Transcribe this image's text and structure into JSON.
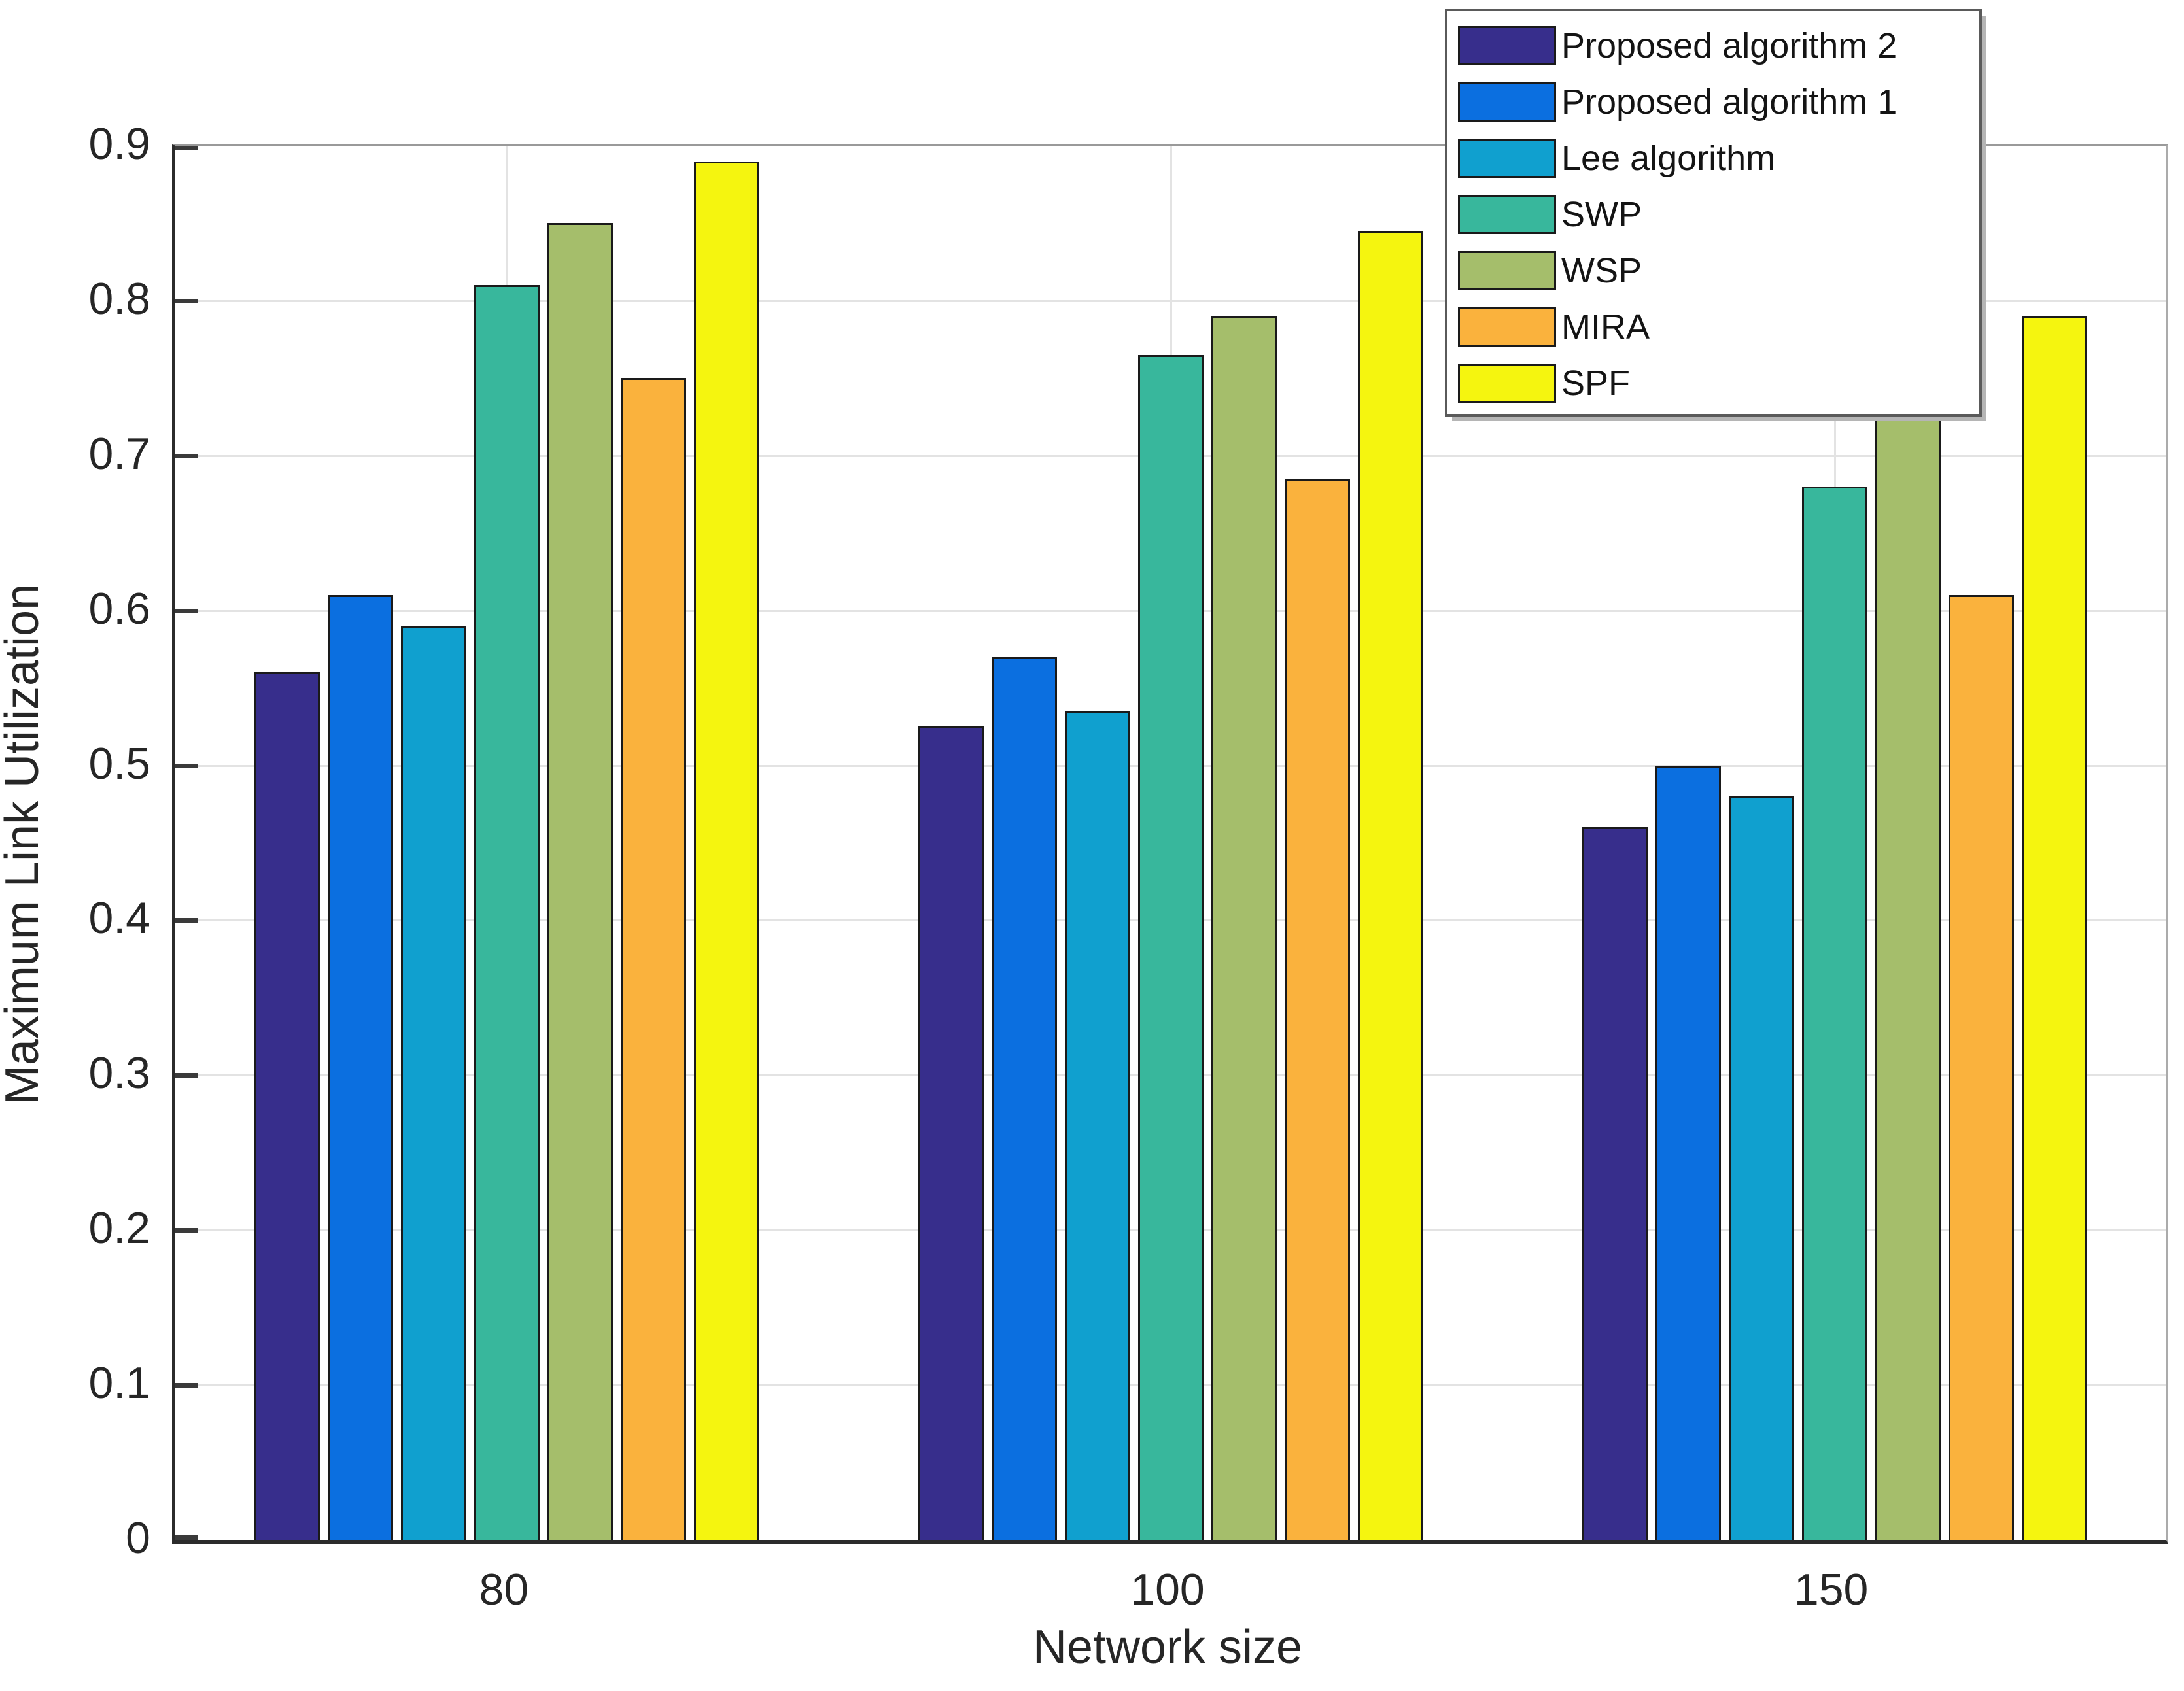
{
  "chart_data": {
    "type": "bar",
    "title": "",
    "xlabel": "Network size",
    "ylabel": "Maximum Link Utilization",
    "categories": [
      "80",
      "100",
      "150"
    ],
    "series": [
      {
        "name": "Proposed algorithm 2",
        "color": "#372E8C",
        "values": [
          0.56,
          0.525,
          0.46
        ]
      },
      {
        "name": "Proposed algorithm 1",
        "color": "#0B6FE0",
        "values": [
          0.61,
          0.57,
          0.5
        ]
      },
      {
        "name": "Lee algorithm",
        "color": "#10A0CF",
        "values": [
          0.59,
          0.535,
          0.48
        ]
      },
      {
        "name": "SWP",
        "color": "#38B79C",
        "values": [
          0.81,
          0.765,
          0.68
        ]
      },
      {
        "name": "WSP",
        "color": "#A5BE6B",
        "values": [
          0.85,
          0.79,
          0.73
        ]
      },
      {
        "name": "MIRA",
        "color": "#FAB23D",
        "values": [
          0.75,
          0.685,
          0.61
        ]
      },
      {
        "name": "SPF",
        "color": "#F5F50F",
        "values": [
          0.89,
          0.845,
          0.79
        ]
      }
    ],
    "ylim": [
      0,
      0.9
    ],
    "yticks": [
      0,
      0.1,
      0.2,
      0.3,
      0.4,
      0.5,
      0.6,
      0.7,
      0.8,
      0.9
    ],
    "grid": "both",
    "gridline_color": "#e3e3e3",
    "bar_edge_color": "#1a1a1a",
    "legend_position": "top-right",
    "legend_entries": [
      "Proposed algorithm 2",
      "Proposed algorithm 1",
      "Lee algorithm",
      "SWP",
      "WSP",
      "MIRA",
      "SPF"
    ]
  }
}
